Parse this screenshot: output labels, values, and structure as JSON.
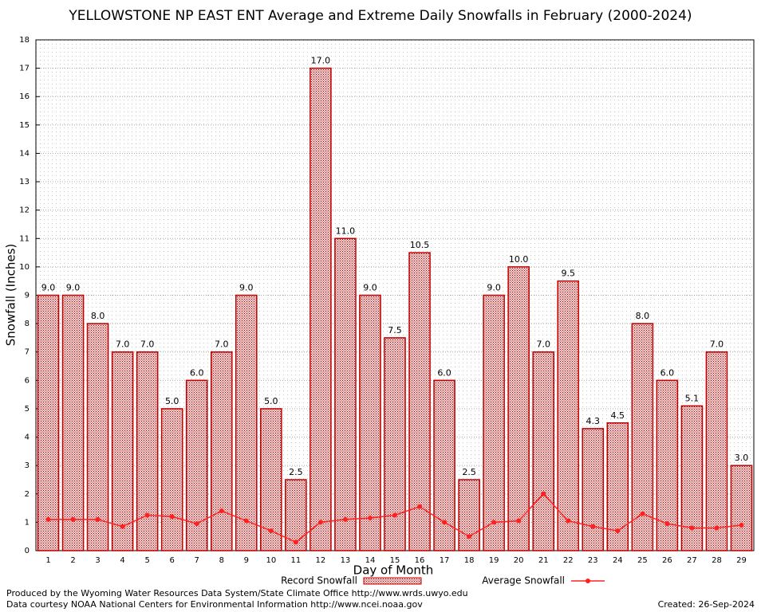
{
  "chart_data": {
    "type": "bar",
    "title": "YELLOWSTONE NP EAST ENT Average and Extreme Daily Snowfalls in February (2000-2024)",
    "x_label": "Day of Month",
    "y_label": "Snowfall (Inches)",
    "categories": [
      "1",
      "2",
      "3",
      "4",
      "5",
      "6",
      "7",
      "8",
      "9",
      "10",
      "11",
      "12",
      "13",
      "14",
      "15",
      "16",
      "17",
      "18",
      "19",
      "20",
      "21",
      "22",
      "23",
      "24",
      "25",
      "26",
      "27",
      "28",
      "29"
    ],
    "series": [
      {
        "name": "Record Snowfall",
        "type": "bar",
        "color": "#c00000",
        "values": [
          9.0,
          9.0,
          8.0,
          7.0,
          7.0,
          5.0,
          6.0,
          7.0,
          9.0,
          5.0,
          2.5,
          17.0,
          11.0,
          9.0,
          7.5,
          10.5,
          6.0,
          2.5,
          9.0,
          10.0,
          7.0,
          9.5,
          4.3,
          4.5,
          8.0,
          6.0,
          5.1,
          7.0,
          3.0
        ],
        "value_labels": [
          "9.0",
          "9.0",
          "8.0",
          "7.0",
          "7.0",
          "5.0",
          "6.0",
          "7.0",
          "9.0",
          "5.0",
          "2.5",
          "17.0",
          "11.0",
          "9.0",
          "7.5",
          "10.5",
          "6.0",
          "2.5",
          "9.0",
          "10.0",
          "7.0",
          "9.5",
          "4.3",
          "4.5",
          "8.0",
          "6.0",
          "5.1",
          "7.0",
          "3.0"
        ]
      },
      {
        "name": "Average Snowfall",
        "type": "line",
        "color": "#ff2020",
        "values": [
          1.1,
          1.1,
          1.1,
          0.85,
          1.25,
          1.2,
          0.95,
          1.4,
          1.05,
          0.7,
          0.3,
          1.0,
          1.1,
          1.15,
          1.25,
          1.55,
          1.0,
          0.5,
          1.0,
          1.05,
          2.0,
          1.05,
          0.85,
          0.7,
          1.3,
          0.95,
          0.8,
          0.8,
          0.9
        ]
      }
    ],
    "ylim": [
      0,
      18
    ],
    "yticks": [
      0,
      1,
      2,
      3,
      4,
      5,
      6,
      7,
      8,
      9,
      10,
      11,
      12,
      13,
      14,
      15,
      16,
      17,
      18
    ],
    "grid": true,
    "legend": "bottom",
    "footer": [
      "Produced by the Wyoming Water Resources Data System/State Climate Office http://www.wrds.uwyo.edu",
      "Data courtesy NOAA National Centers for Environmental Information http://www.ncei.noaa.gov"
    ],
    "created": "Created: 26-Sep-2024"
  }
}
